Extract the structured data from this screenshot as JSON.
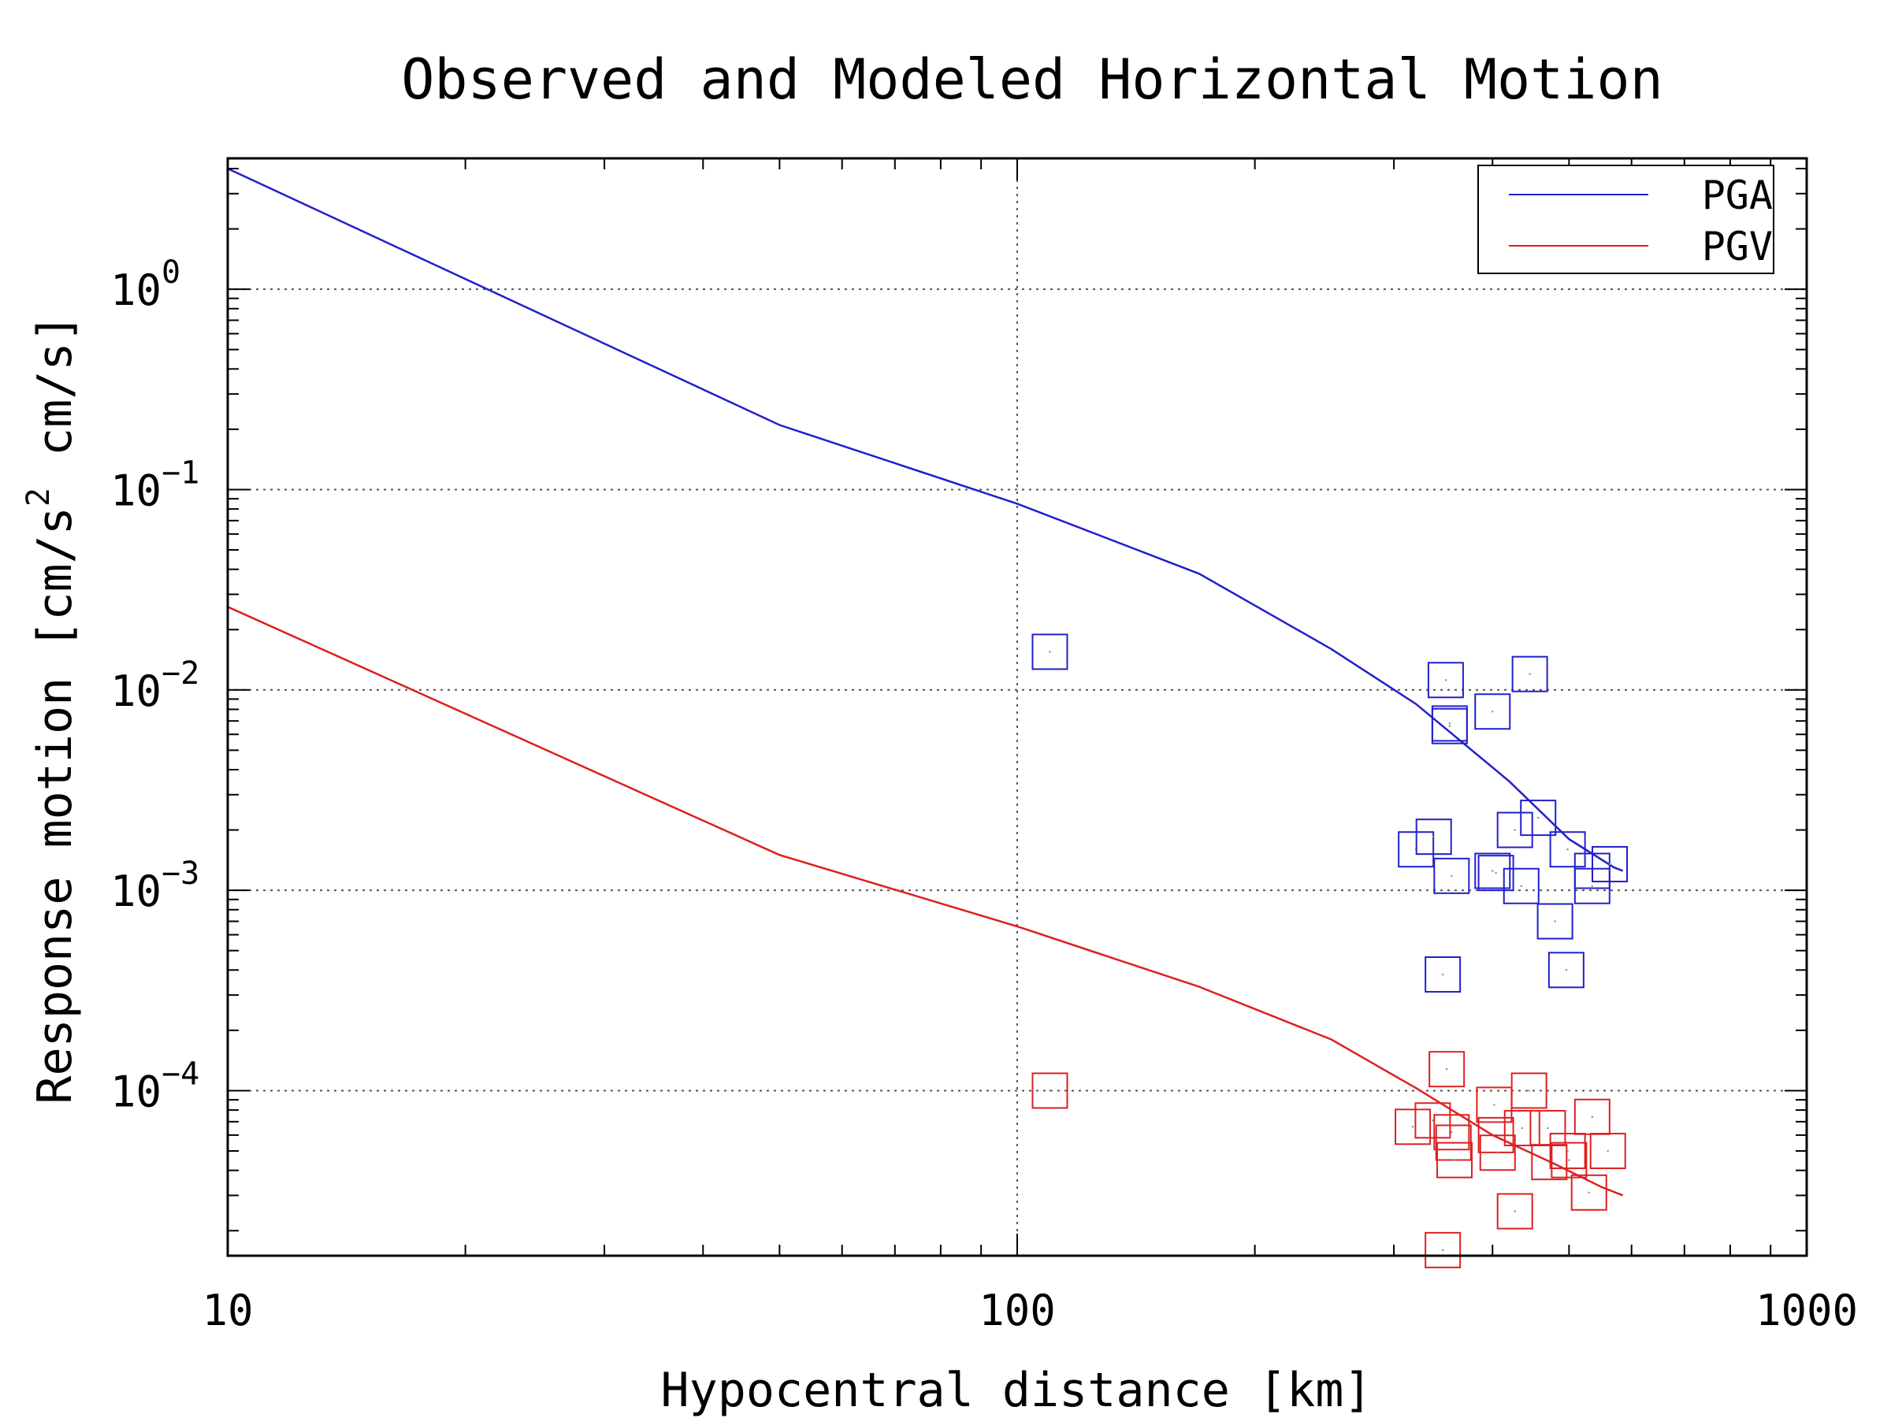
{
  "chart_data": {
    "type": "scatter",
    "title": "Observed and Modeled Horizontal Motion",
    "xlabel": "Hypocentral distance [km]",
    "ylabel": "Response motion [cm/s² cm/s]",
    "ylabel_parts": {
      "a": "Response motion [cm/s",
      "sup": "2",
      "b": "cm/s]"
    },
    "x_scale": "log",
    "y_scale": "log",
    "xlim": [
      10,
      1000
    ],
    "ylim": [
      1.5e-05,
      4.5
    ],
    "x_ticks": [
      {
        "value": 10,
        "label": "10"
      },
      {
        "value": 100,
        "label": "100"
      },
      {
        "value": 1000,
        "label": "1000"
      }
    ],
    "y_ticks": [
      {
        "value": 1,
        "base": "10",
        "exp": "0"
      },
      {
        "value": 0.1,
        "base": "10",
        "exp": "−1"
      },
      {
        "value": 0.01,
        "base": "10",
        "exp": "−2"
      },
      {
        "value": 0.001,
        "base": "10",
        "exp": "−3"
      },
      {
        "value": 0.0001,
        "base": "10",
        "exp": "−4"
      }
    ],
    "grid": true,
    "legend_position": "top-right",
    "legend": [
      {
        "name": "PGA",
        "color": "#2020cc"
      },
      {
        "name": "PGV",
        "color": "#dd2020"
      }
    ],
    "model_curves": [
      {
        "name": "PGA",
        "color": "#2020cc",
        "x": [
          10,
          50,
          100,
          170,
          250,
          320,
          420,
          500,
          570,
          585
        ],
        "y": [
          4.0,
          0.21,
          0.085,
          0.038,
          0.016,
          0.0085,
          0.0035,
          0.0018,
          0.0013,
          0.00125
        ]
      },
      {
        "name": "PGV",
        "color": "#dd2020",
        "x": [
          10,
          50,
          100,
          170,
          250,
          320,
          400,
          480,
          550,
          585
        ],
        "y": [
          0.026,
          0.0015,
          0.00066,
          0.00033,
          0.00018,
          0.000103,
          6e-05,
          4.3e-05,
          3.3e-05,
          3e-05
        ]
      }
    ],
    "observed": [
      {
        "name": "PGA",
        "color": "#2020cc",
        "points": [
          [
            110,
            0.0155
          ],
          [
            349,
            0.0112
          ],
          [
            353,
            0.0068
          ],
          [
            353,
            0.0066
          ],
          [
            400,
            0.0078
          ],
          [
            446,
            0.012
          ],
          [
            320,
            0.0016
          ],
          [
            337,
            0.00185
          ],
          [
            355,
            0.00118
          ],
          [
            400,
            0.00125
          ],
          [
            404,
            0.00122
          ],
          [
            427,
            0.002
          ],
          [
            435,
            0.00105
          ],
          [
            457,
            0.0023
          ],
          [
            498,
            0.0016
          ],
          [
            535,
            0.00125
          ],
          [
            535,
            0.00105
          ],
          [
            563,
            0.00135
          ],
          [
            480,
            0.0007
          ],
          [
            496,
            0.0004
          ],
          [
            346,
            0.00038
          ]
        ]
      },
      {
        "name": "PGV",
        "color": "#dd2020",
        "points": [
          [
            110,
            0.0001
          ],
          [
            350,
            0.000128
          ],
          [
            317,
            6.6e-05
          ],
          [
            336,
            7.1e-05
          ],
          [
            355,
            6.2e-05
          ],
          [
            357,
            5.5e-05
          ],
          [
            358,
            4.5e-05
          ],
          [
            402,
            8.5e-05
          ],
          [
            404,
            6e-05
          ],
          [
            406,
            4.9e-05
          ],
          [
            427,
            2.5e-05
          ],
          [
            436,
            6.5e-05
          ],
          [
            445,
            0.0001
          ],
          [
            470,
            6.5e-05
          ],
          [
            472,
            4.4e-05
          ],
          [
            498,
            5e-05
          ],
          [
            500,
            4.5e-05
          ],
          [
            535,
            7.4e-05
          ],
          [
            560,
            5e-05
          ],
          [
            530,
            3.1e-05
          ],
          [
            346,
            1.6e-05
          ]
        ]
      }
    ]
  }
}
